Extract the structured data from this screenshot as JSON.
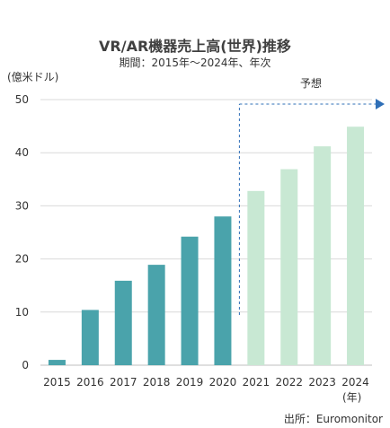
{
  "chart_data": {
    "type": "bar",
    "title": "VR/AR機器売上高(世界)推移",
    "subtitle": "期間：2015年〜2024年、年次",
    "ylabel": "(億米ドル)",
    "xlabel_suffix": "(年)",
    "categories": [
      "2015",
      "2016",
      "2017",
      "2018",
      "2019",
      "2020",
      "2021",
      "2022",
      "2023",
      "2024"
    ],
    "values": [
      1.0,
      10.4,
      15.9,
      18.9,
      24.2,
      28.0,
      32.8,
      36.9,
      41.2,
      44.9
    ],
    "forecast_from": "2021",
    "forecast_label": "予想",
    "ylim": [
      0,
      50
    ],
    "yticks": [
      0,
      10,
      20,
      30,
      40,
      50
    ],
    "grid": true,
    "colors": {
      "actual": "#4aa3ab",
      "forecast": "#c8e8d3",
      "arrow": "#2f6fb7",
      "grid": "#d9d9d9"
    }
  },
  "source": "出所：Euromonitor"
}
